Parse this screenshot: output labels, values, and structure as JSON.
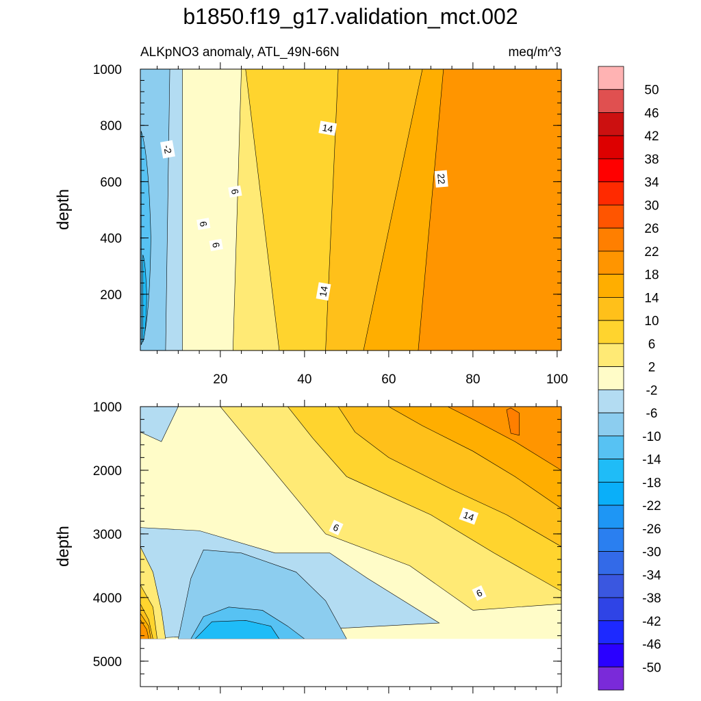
{
  "title": "b1850.f19_g17.validation_mct.002",
  "chart_data": [
    {
      "type": "contour",
      "panel": "upper",
      "subtitle_left": "ALKpNO3 anomaly, ATL_49N-66N",
      "subtitle_right": "meq/m^3",
      "xlabel": "",
      "ylabel": "depth",
      "xlim": [
        1,
        101
      ],
      "ylim": [
        1000,
        0
      ],
      "xticks": [
        {
          "v": 20,
          "label": "20"
        },
        {
          "v": 40,
          "label": "40"
        },
        {
          "v": 60,
          "label": "60"
        },
        {
          "v": 80,
          "label": "80"
        },
        {
          "v": 100,
          "label": "100"
        }
      ],
      "yticks": [
        {
          "v": 200,
          "label": "200"
        },
        {
          "v": 400,
          "label": "400"
        },
        {
          "v": 600,
          "label": "600"
        },
        {
          "v": 800,
          "label": "800"
        },
        {
          "v": 1000,
          "label": "1000"
        }
      ],
      "bands": [
        {
          "lower": 22,
          "upper": 26,
          "x_top": 67,
          "x_bottom": 73
        },
        {
          "lower": 18,
          "upper": 22,
          "x_top": 54,
          "x_bottom": 68
        },
        {
          "lower": 14,
          "upper": 18,
          "x_top": 45,
          "x_bottom": 48
        },
        {
          "lower": 10,
          "upper": 14,
          "x_top": 34,
          "x_bottom": 26
        },
        {
          "lower": 6,
          "upper": 10,
          "x_top": 23,
          "x_bottom": 25
        },
        {
          "lower": 2,
          "upper": 6,
          "x_top": 11,
          "x_bottom": 11
        },
        {
          "lower": -2,
          "upper": 2,
          "x_top": 7,
          "x_bottom": 8
        },
        {
          "lower": -6,
          "upper": -2,
          "x_top": 3,
          "x_bottom": 1
        }
      ],
      "contour_labels": [
        {
          "text": "14",
          "x": 44.5,
          "y": 210,
          "rotate": -80
        },
        {
          "text": "6",
          "x": 19,
          "y": 375,
          "rotate": 80
        },
        {
          "text": "6",
          "x": 16,
          "y": 450,
          "rotate": 80
        },
        {
          "text": "6",
          "x": 23.5,
          "y": 565,
          "rotate": 80
        },
        {
          "text": "22",
          "x": 72.5,
          "y": 610,
          "rotate": 85
        },
        {
          "text": "-2",
          "x": 7.5,
          "y": 715,
          "rotate": 80
        },
        {
          "text": "14",
          "x": 45.5,
          "y": 790,
          "rotate": 10
        }
      ]
    },
    {
      "type": "contour",
      "panel": "lower",
      "xlabel": "",
      "ylabel": "depth",
      "xlim": [
        1,
        101
      ],
      "ylim": [
        1000,
        5400
      ],
      "xticks": [
        {
          "v": 20,
          "label": ""
        },
        {
          "v": 40,
          "label": ""
        },
        {
          "v": 60,
          "label": ""
        },
        {
          "v": 80,
          "label": ""
        },
        {
          "v": 100,
          "label": ""
        }
      ],
      "yticks": [
        {
          "v": 1000,
          "label": "1000"
        },
        {
          "v": 2000,
          "label": "2000"
        },
        {
          "v": 3000,
          "label": "3000"
        },
        {
          "v": 4000,
          "label": "4000"
        },
        {
          "v": 5000,
          "label": "5000"
        }
      ],
      "bottom_depth": 4650,
      "contour_labels": [
        {
          "text": "6",
          "x": 47.5,
          "y": 2900,
          "rotate": 25
        },
        {
          "text": "14",
          "x": 79,
          "y": 2720,
          "rotate": 20
        },
        {
          "text": "6",
          "x": 81.5,
          "y": 3930,
          "rotate": -25
        }
      ]
    }
  ],
  "colorbar": {
    "levels": [
      "50",
      "46",
      "42",
      "38",
      "34",
      "30",
      "26",
      "22",
      "18",
      "14",
      "10",
      "6",
      "2",
      "-2",
      "-6",
      "-10",
      "-14",
      "-18",
      "-22",
      "-26",
      "-30",
      "-34",
      "-38",
      "-42",
      "-46",
      "-50"
    ],
    "colors": [
      "#ffb3b3",
      "#e05050",
      "#cc1010",
      "#dd0000",
      "#ff0000",
      "#ff2a00",
      "#ff5500",
      "#ff7f00",
      "#ff9500",
      "#ffae00",
      "#ffc01a",
      "#ffd42e",
      "#ffea75",
      "#fffcc8",
      "#b3dcf2",
      "#8ccdef",
      "#57c2f3",
      "#1fbcf7",
      "#0aaff9",
      "#1e96f5",
      "#2a7ff0",
      "#336ae8",
      "#3a57e0",
      "#2f44e6",
      "#1d29ff",
      "#2a00ff",
      "#7a2ad9"
    ]
  }
}
